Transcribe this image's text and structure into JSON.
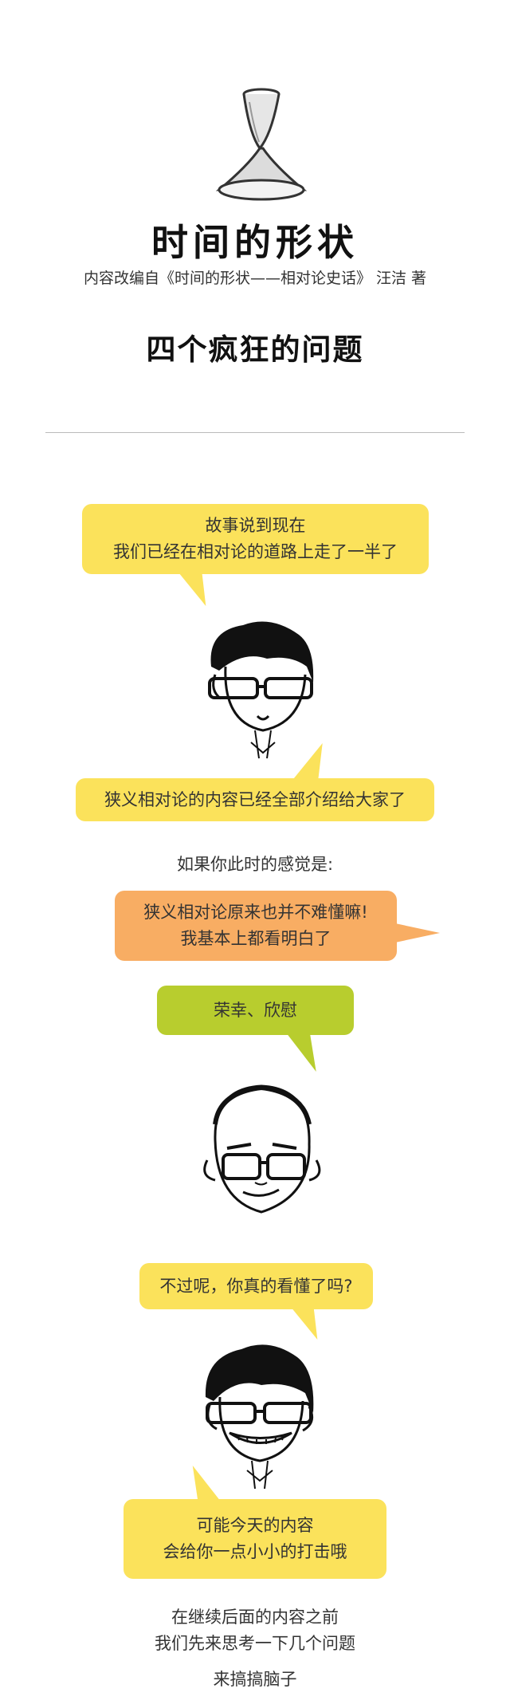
{
  "header": {
    "title": "时间的形状",
    "subtitle": "内容改编自《时间的形状——相对论史话》 汪洁 著",
    "section_title": "四个疯狂的问题"
  },
  "bubbles": {
    "b1": [
      "故事说到现在",
      "我们已经在相对论的道路上走了一半了"
    ],
    "b2": "狭义相对论的内容已经全部介绍给大家了",
    "b3": [
      "狭义相对论原来也并不难懂嘛!",
      "我基本上都看明白了"
    ],
    "b4": "荣幸、欣慰",
    "b5": "不过呢，你真的看懂了吗?",
    "b6": [
      "可能今天的内容",
      "会给你一点小小的打击哦"
    ]
  },
  "texts": {
    "t1": "如果你此时的感觉是:",
    "t2": [
      "在继续后面的内容之前",
      "我们先来思考一下几个问题"
    ],
    "t3": "来搞搞脑子"
  },
  "colors": {
    "yellow": "#fbe25b",
    "orange": "#f8ad63",
    "green": "#b8cd2e"
  },
  "icons": {
    "hourglass": "hourglass-icon",
    "face1": "glasses-man-face",
    "face2": "bald-man-face",
    "face3": "grinning-man-face"
  }
}
